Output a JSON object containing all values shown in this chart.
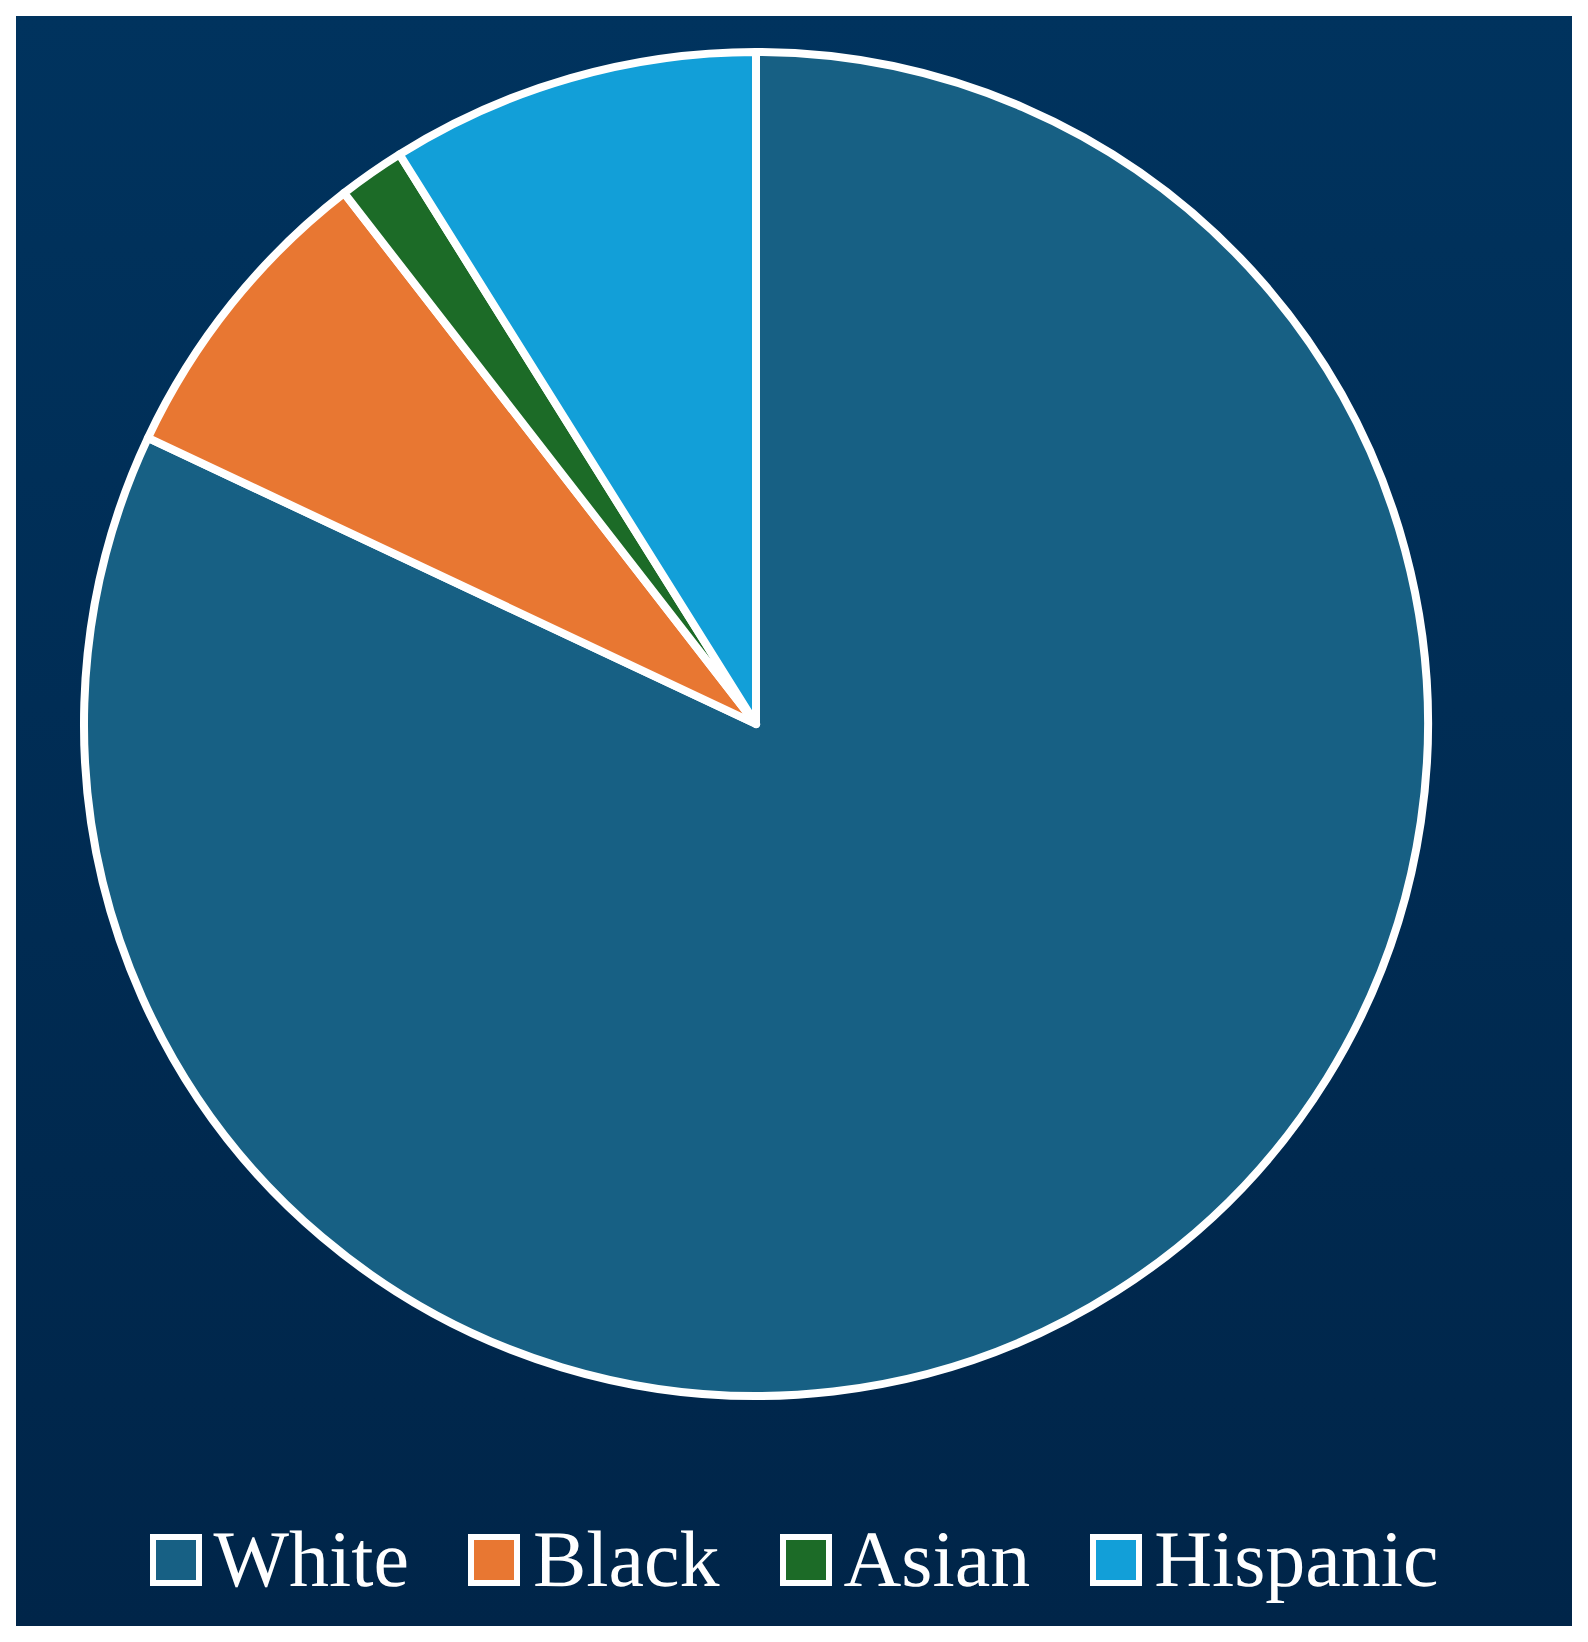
{
  "chart_data": {
    "type": "pie",
    "categories": [
      "White",
      "Black",
      "Asian",
      "Hispanic"
    ],
    "values": [
      82.0,
      7.5,
      1.6,
      8.9
    ],
    "colors": [
      "#176084",
      "#e87732",
      "#1c6b27",
      "#129fd8"
    ],
    "legend": "bottom"
  }
}
